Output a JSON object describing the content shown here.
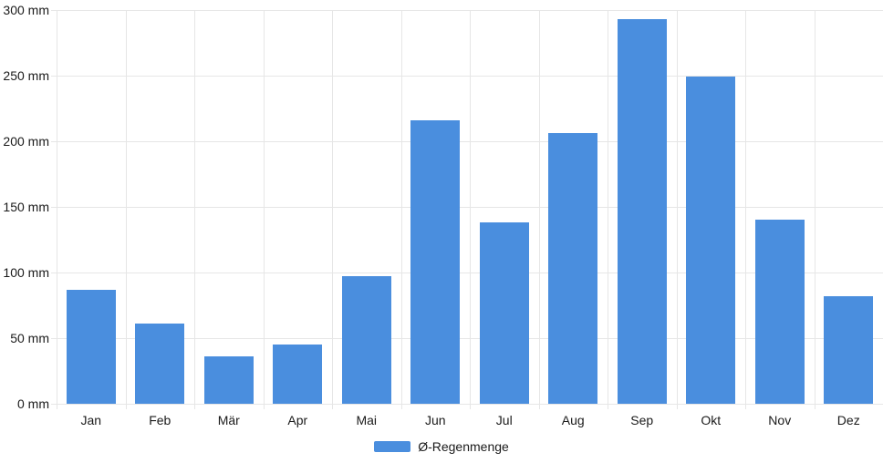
{
  "chart_data": {
    "type": "bar",
    "title": "",
    "xlabel": "",
    "ylabel": "",
    "unit": "mm",
    "categories": [
      "Jan",
      "Feb",
      "Mär",
      "Apr",
      "Mai",
      "Jun",
      "Jul",
      "Aug",
      "Sep",
      "Okt",
      "Nov",
      "Dez"
    ],
    "series": [
      {
        "name": "Ø-Regenmenge",
        "values": [
          87,
          61,
          36,
          45,
          97,
          216,
          138,
          206,
          293,
          249,
          140,
          82
        ]
      }
    ],
    "ylim": [
      0,
      300
    ],
    "ytick_step": 50,
    "yticks": [
      {
        "value": 300,
        "label": "300 mm"
      },
      {
        "value": 250,
        "label": "250 mm"
      },
      {
        "value": 200,
        "label": "200 mm"
      },
      {
        "value": 150,
        "label": "150 mm"
      },
      {
        "value": 100,
        "label": "100 mm"
      },
      {
        "value": 50,
        "label": "50 mm"
      },
      {
        "value": 0,
        "label": "0 mm"
      }
    ],
    "grid": true,
    "legend_position": "bottom",
    "colors": {
      "bar": "#4a8ede",
      "grid": "#e6e6e6",
      "text": "#1a1a1a",
      "background": "#ffffff"
    }
  }
}
